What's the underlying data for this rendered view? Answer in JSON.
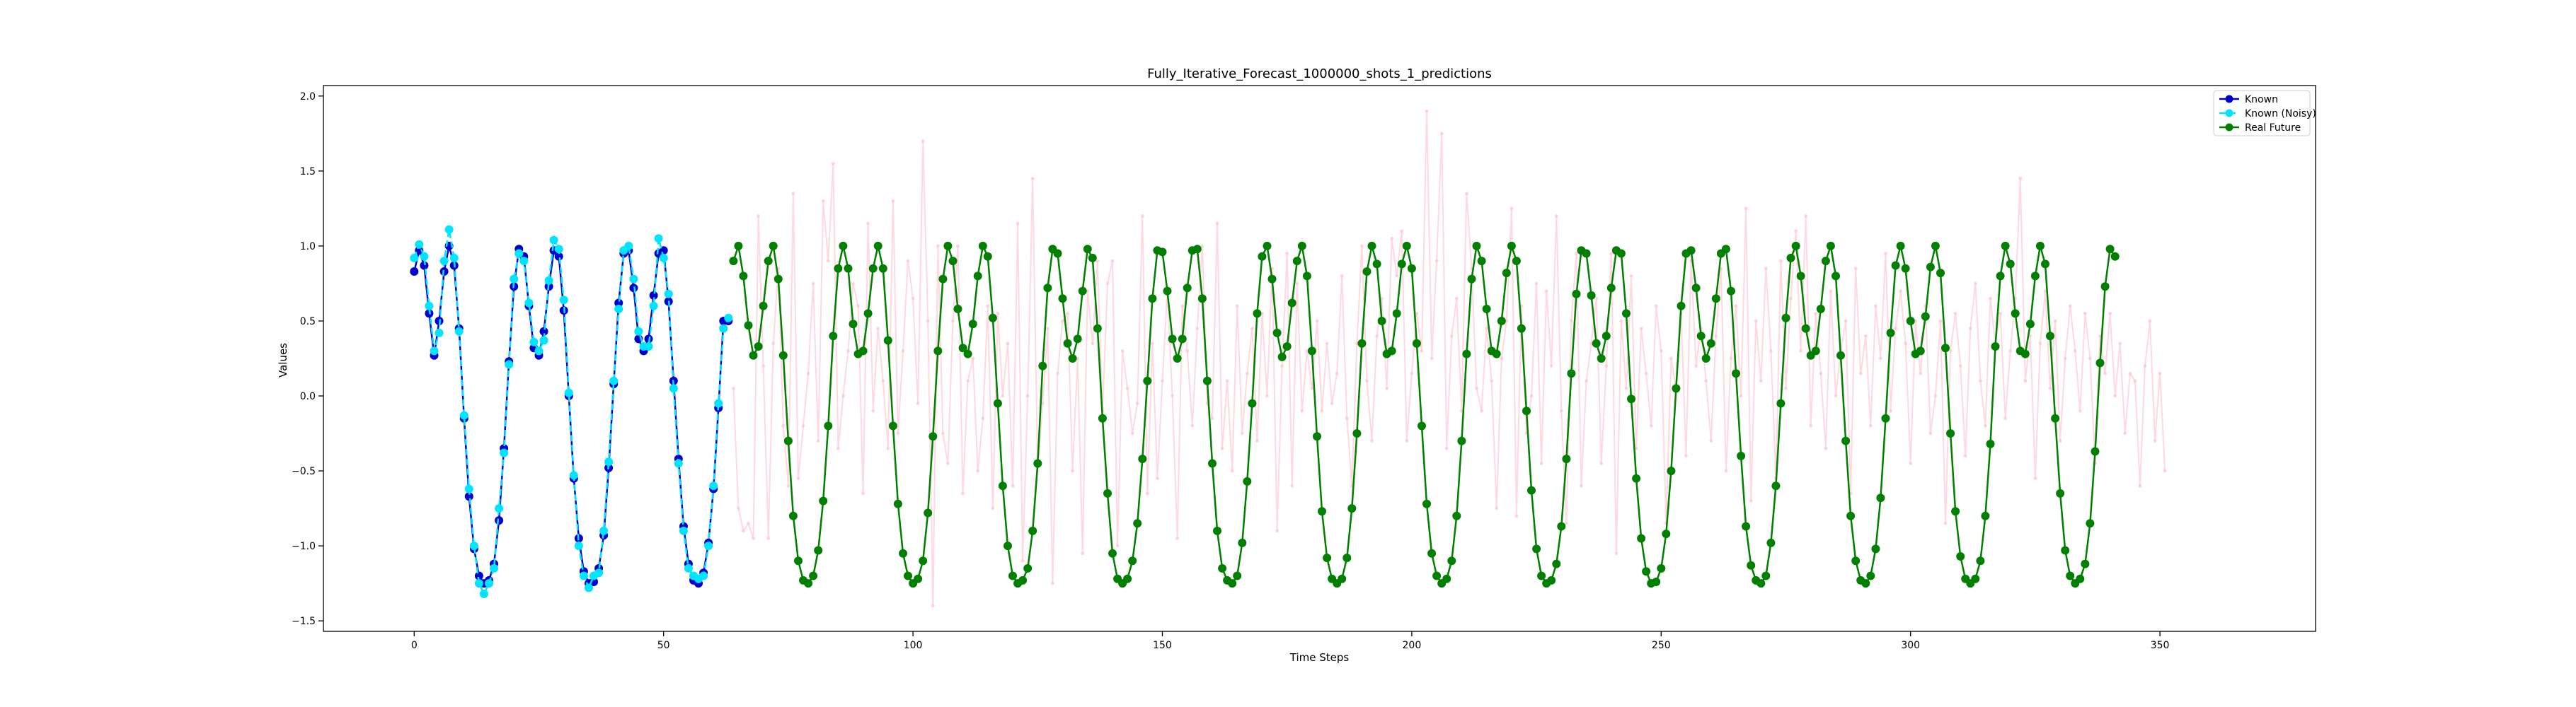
{
  "chart_data": {
    "type": "line",
    "title": "Fully_Iterative_Forecast_1000000_shots_1_predictions",
    "xlabel": "Time Steps",
    "ylabel": "Values",
    "xlim": [
      -18.2,
      381.2
    ],
    "ylim": [
      -1.57,
      2.07
    ],
    "xticks": [
      0,
      50,
      100,
      150,
      200,
      250,
      300,
      350
    ],
    "yticks": [
      -1.5,
      -1.0,
      -0.5,
      0.0,
      0.5,
      1.0,
      1.5,
      2.0
    ],
    "ytick_labels": [
      "−1.5",
      "−1.0",
      "−0.5",
      "0.0",
      "0.5",
      "1.0",
      "1.5",
      "2.0"
    ],
    "grid": false,
    "legend_position": "top-right",
    "colors": {
      "known": "#0000cd",
      "known_noisy": "#00e5ff",
      "real_future": "#007f00",
      "predictions": "#ffc0cb"
    },
    "series": [
      {
        "name": "Known",
        "x_start": 0,
        "values": [
          0.83,
          0.97,
          0.87,
          0.55,
          0.27,
          0.5,
          0.83,
          1.0,
          0.87,
          0.45,
          -0.15,
          -0.67,
          -1.02,
          -1.2,
          -1.25,
          -1.23,
          -1.12,
          -0.83,
          -0.35,
          0.23,
          0.73,
          0.98,
          0.93,
          0.6,
          0.32,
          0.27,
          0.43,
          0.73,
          0.97,
          0.93,
          0.57,
          0.0,
          -0.55,
          -0.95,
          -1.17,
          -1.25,
          -1.24,
          -1.15,
          -0.93,
          -0.48,
          0.08,
          0.62,
          0.95,
          0.97,
          0.72,
          0.38,
          0.3,
          0.38,
          0.67,
          0.95,
          0.97,
          0.63,
          0.1,
          -0.42,
          -0.87,
          -1.12,
          -1.23,
          -1.25,
          -1.18,
          -0.98,
          -0.62,
          -0.08,
          0.5,
          0.5
        ]
      },
      {
        "name": "Known (Noisy)",
        "x_start": 0,
        "values": [
          0.92,
          1.01,
          0.93,
          0.6,
          0.3,
          0.42,
          0.9,
          1.11,
          0.92,
          0.43,
          -0.13,
          -0.62,
          -1.0,
          -1.25,
          -1.32,
          -1.25,
          -1.15,
          -0.75,
          -0.38,
          0.21,
          0.78,
          0.95,
          0.9,
          0.62,
          0.36,
          0.3,
          0.37,
          0.77,
          1.04,
          0.98,
          0.64,
          0.02,
          -0.53,
          -1.0,
          -1.2,
          -1.28,
          -1.2,
          -1.18,
          -0.9,
          -0.44,
          0.1,
          0.58,
          0.97,
          1.0,
          0.78,
          0.43,
          0.33,
          0.33,
          0.6,
          1.05,
          0.92,
          0.68,
          0.05,
          -0.45,
          -0.9,
          -1.15,
          -1.2,
          -1.22,
          -1.2,
          -1.0,
          -0.6,
          -0.05,
          0.45,
          0.52
        ]
      },
      {
        "name": "Real Future",
        "x_start": 64,
        "values": [
          0.9,
          1.0,
          0.8,
          0.47,
          0.27,
          0.33,
          0.6,
          0.9,
          1.0,
          0.78,
          0.27,
          -0.3,
          -0.8,
          -1.1,
          -1.23,
          -1.25,
          -1.2,
          -1.03,
          -0.7,
          -0.2,
          0.4,
          0.85,
          1.0,
          0.85,
          0.48,
          0.28,
          0.3,
          0.55,
          0.85,
          1.0,
          0.85,
          0.37,
          -0.2,
          -0.72,
          -1.05,
          -1.2,
          -1.25,
          -1.22,
          -1.1,
          -0.78,
          -0.27,
          0.3,
          0.78,
          1.0,
          0.9,
          0.58,
          0.32,
          0.28,
          0.48,
          0.8,
          1.0,
          0.93,
          0.52,
          -0.05,
          -0.6,
          -1.0,
          -1.2,
          -1.25,
          -1.23,
          -1.15,
          -0.9,
          -0.45,
          0.2,
          0.72,
          0.98,
          0.95,
          0.65,
          0.35,
          0.25,
          0.38,
          0.7,
          0.98,
          0.92,
          0.45,
          -0.15,
          -0.65,
          -1.05,
          -1.22,
          -1.25,
          -1.22,
          -1.1,
          -0.85,
          -0.42,
          0.1,
          0.65,
          0.97,
          0.96,
          0.7,
          0.38,
          0.25,
          0.38,
          0.72,
          0.97,
          0.98,
          0.65,
          0.1,
          -0.45,
          -0.9,
          -1.15,
          -1.23,
          -1.25,
          -1.2,
          -0.98,
          -0.57,
          -0.05,
          0.55,
          0.93,
          1.0,
          0.78,
          0.42,
          0.26,
          0.33,
          0.62,
          0.9,
          1.0,
          0.8,
          0.3,
          -0.27,
          -0.77,
          -1.08,
          -1.22,
          -1.25,
          -1.22,
          -1.08,
          -0.75,
          -0.25,
          0.35,
          0.83,
          1.0,
          0.88,
          0.5,
          0.28,
          0.3,
          0.55,
          0.88,
          1.0,
          0.85,
          0.35,
          -0.2,
          -0.72,
          -1.05,
          -1.2,
          -1.25,
          -1.22,
          -1.1,
          -0.8,
          -0.3,
          0.28,
          0.78,
          1.0,
          0.9,
          0.58,
          0.3,
          0.28,
          0.5,
          0.82,
          1.0,
          0.9,
          0.45,
          -0.1,
          -0.63,
          -1.02,
          -1.2,
          -1.25,
          -1.23,
          -1.12,
          -0.87,
          -0.42,
          0.15,
          0.68,
          0.97,
          0.95,
          0.67,
          0.35,
          0.25,
          0.4,
          0.72,
          0.97,
          0.95,
          0.55,
          -0.02,
          -0.55,
          -0.95,
          -1.17,
          -1.25,
          -1.24,
          -1.15,
          -0.92,
          -0.5,
          0.05,
          0.6,
          0.95,
          0.97,
          0.72,
          0.4,
          0.25,
          0.35,
          0.65,
          0.95,
          0.98,
          0.7,
          0.15,
          -0.4,
          -0.87,
          -1.13,
          -1.23,
          -1.25,
          -1.2,
          -0.98,
          -0.6,
          -0.05,
          0.52,
          0.92,
          1.0,
          0.8,
          0.45,
          0.27,
          0.3,
          0.58,
          0.9,
          1.0,
          0.8,
          0.27,
          -0.3,
          -0.8,
          -1.1,
          -1.23,
          -1.25,
          -1.2,
          -1.02,
          -0.68,
          -0.15,
          0.42,
          0.87,
          1.0,
          0.85,
          0.5,
          0.28,
          0.3,
          0.53,
          0.86,
          1.0,
          0.82,
          0.32,
          -0.25,
          -0.77,
          -1.07,
          -1.22,
          -1.25,
          -1.22,
          -1.1,
          -0.8,
          -0.32,
          0.33,
          0.8,
          1.0,
          0.88,
          0.55,
          0.3,
          0.28,
          0.48,
          0.8,
          1.0,
          0.88,
          0.4,
          -0.15,
          -0.65,
          -1.03,
          -1.2,
          -1.25,
          -1.22,
          -1.12,
          -0.85,
          -0.37,
          0.22,
          0.73,
          0.98,
          0.93
        ]
      },
      {
        "name": "",
        "x_start": 64,
        "values": [
          0.05,
          -0.75,
          -0.9,
          -0.85,
          -0.95,
          1.2,
          0.2,
          -0.95,
          0.35,
          0.85,
          -0.2,
          -0.6,
          1.35,
          -0.55,
          -0.2,
          0.15,
          0.75,
          -0.3,
          1.3,
          0.9,
          1.55,
          -0.35,
          0.0,
          0.3,
          0.75,
          0.6,
          -0.65,
          1.15,
          -0.1,
          0.45,
          0.1,
          -0.35,
          1.3,
          -0.25,
          0.3,
          0.9,
          0.65,
          -0.05,
          1.7,
          0.5,
          -1.4,
          1.0,
          -0.25,
          -0.45,
          0.5,
          1.0,
          -0.65,
          0.1,
          0.25,
          -0.5,
          -0.15,
          0.6,
          -0.75,
          0.55,
          0.0,
          0.35,
          -0.6,
          1.15,
          -1.1,
          0.0,
          1.45,
          -0.5,
          -0.05,
          0.45,
          -1.25,
          0.15,
          0.5,
          0.55,
          -0.5,
          0.25,
          -1.05,
          0.7,
          0.35,
          0.9,
          -0.1,
          0.75,
          0.9,
          -1.0,
          0.3,
          0.05,
          -0.25,
          -0.05,
          1.2,
          -0.65,
          0.35,
          -0.55,
          0.1,
          0.7,
          0.0,
          -0.95,
          0.6,
          0.3,
          -0.2,
          0.45,
          1.0,
          -0.05,
          -0.15,
          1.15,
          -0.35,
          0.1,
          -0.5,
          0.6,
          -0.25,
          0.15,
          0.45,
          -0.3,
          0.55,
          0.0,
          0.85,
          -0.9,
          0.2,
          0.95,
          -0.6,
          0.75,
          -0.1,
          0.3,
          0.05,
          0.5,
          -0.1,
          0.35,
          -0.05,
          0.15,
          0.8,
          -0.15,
          -0.6,
          0.35,
          1.0,
          0.1,
          -0.3,
          0.4,
          0.65,
          0.05,
          1.05,
          0.8,
          1.1,
          -0.3,
          0.15,
          0.55,
          0.3,
          1.9,
          0.25,
          0.9,
          1.75,
          -0.35,
          0.4,
          0.65,
          -0.1,
          1.35,
          0.85,
          0.05,
          -0.1,
          0.45,
          0.1,
          -0.75,
          0.25,
          0.5,
          1.25,
          -0.8,
          0.6,
          -0.25,
          0.0,
          0.75,
          -0.45,
          0.7,
          0.2,
          1.2,
          -0.1,
          -0.85,
          0.5,
          0.95,
          -0.6,
          0.1,
          0.35,
          0.65,
          -0.45,
          0.2,
          0.95,
          -1.05,
          0.5,
          0.05,
          0.8,
          -0.35,
          0.45,
          0.15,
          -0.2,
          0.6,
          0.3,
          -0.85,
          0.25,
          0.05,
          0.55,
          -0.4,
          0.9,
          0.2,
          0.45,
          0.1,
          -0.3,
          0.4,
          0.85,
          -0.5,
          0.25,
          0.6,
          0.0,
          1.25,
          -0.7,
          0.5,
          0.1,
          0.85,
          0.3,
          -0.55,
          0.9,
          0.05,
          0.65,
          1.1,
          0.3,
          1.2,
          -0.2,
          0.55,
          0.15,
          -0.35,
          0.7,
          0.0,
          0.3,
          0.5,
          -0.65,
          0.85,
          0.15,
          0.4,
          -0.2,
          0.6,
          0.25,
          0.95,
          -0.1,
          0.45,
          0.7,
          0.35,
          -0.45,
          0.5,
          0.15,
          0.6,
          -0.25,
          0.0,
          0.5,
          -0.85,
          0.3,
          0.55,
          0.2,
          -0.4,
          0.45,
          0.75,
          0.1,
          -0.2,
          0.65,
          0.35,
          0.55,
          -0.15,
          0.3,
          0.65,
          1.45,
          0.1,
          0.4,
          -0.55,
          0.35,
          0.7,
          0.05,
          0.5,
          -0.3,
          0.25,
          0.6,
          0.3,
          -0.1,
          0.55,
          0.25,
          -0.45,
          0.4,
          0.15,
          0.55,
          0.0,
          0.35,
          -0.25,
          0.15,
          0.1,
          -0.6,
          0.2,
          0.5,
          -0.3,
          0.15,
          -0.5
        ]
      }
    ]
  }
}
